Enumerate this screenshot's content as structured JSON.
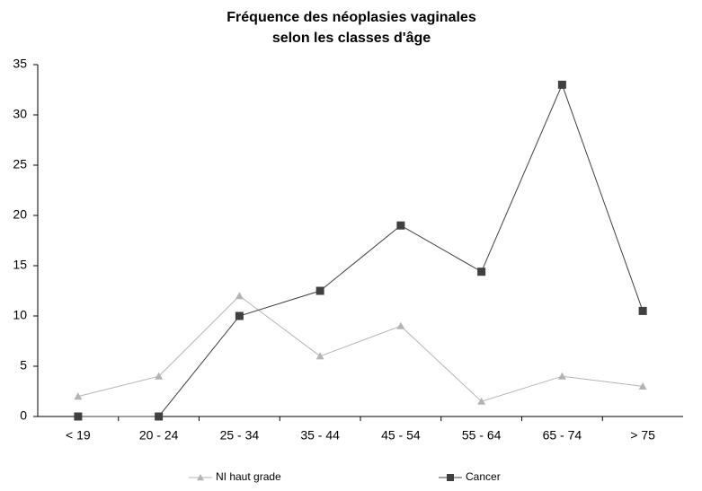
{
  "chart_data": {
    "type": "line",
    "title": [
      "Fréquence des néoplasies vaginales",
      "selon les classes d'âge"
    ],
    "categories": [
      "< 19",
      "20 - 24",
      "25 - 34",
      "35 - 44",
      "45 - 54",
      "55 - 64",
      "65 - 74",
      "> 75"
    ],
    "series": [
      {
        "name": "NI haut grade",
        "color": "#b4b4b4",
        "marker": "triangle",
        "values": [
          2,
          4,
          12,
          6,
          9,
          1.5,
          4,
          3
        ]
      },
      {
        "name": "Cancer",
        "color": "#404040",
        "marker": "square",
        "values": [
          0,
          0,
          10,
          12.5,
          19,
          14.4,
          33,
          10.5
        ]
      }
    ],
    "ylim": [
      0,
      35
    ],
    "yticks": [
      0,
      5,
      10,
      15,
      20,
      25,
      30,
      35
    ],
    "grid": false,
    "legend": "bottom"
  }
}
